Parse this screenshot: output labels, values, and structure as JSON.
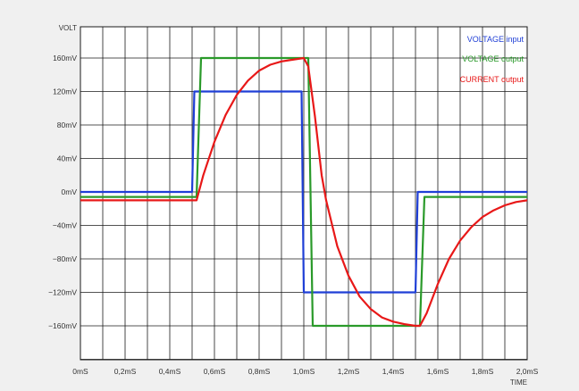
{
  "chart_data": {
    "type": "line",
    "title": "",
    "ylabel": "VOLT",
    "xlabel": "TIME",
    "xlim": [
      0,
      2.0
    ],
    "ylim": [
      -200,
      200
    ],
    "grid": true,
    "legend_position": "top-right",
    "x_ticks": [
      {
        "value": 0.0,
        "label": "0mS"
      },
      {
        "value": 0.2,
        "label": "0,2mS"
      },
      {
        "value": 0.4,
        "label": "0,4mS"
      },
      {
        "value": 0.6,
        "label": "0,6mS"
      },
      {
        "value": 0.8,
        "label": "0,8mS"
      },
      {
        "value": 1.0,
        "label": "1,0mS"
      },
      {
        "value": 1.2,
        "label": "1,2mS"
      },
      {
        "value": 1.4,
        "label": "1,4mS"
      },
      {
        "value": 1.6,
        "label": "1,6mS"
      },
      {
        "value": 1.8,
        "label": "1,8mS"
      },
      {
        "value": 2.0,
        "label": "2,0mS"
      }
    ],
    "x_grid": [
      0,
      0.1,
      0.2,
      0.3,
      0.4,
      0.5,
      0.6,
      0.7,
      0.8,
      0.9,
      1.0,
      1.1,
      1.2,
      1.3,
      1.4,
      1.5,
      1.6,
      1.7,
      1.8,
      1.9,
      2.0
    ],
    "y_ticks": [
      {
        "value": 160,
        "label": "160mV"
      },
      {
        "value": 120,
        "label": "120mV"
      },
      {
        "value": 80,
        "label": "80mV"
      },
      {
        "value": 40,
        "label": "40mV"
      },
      {
        "value": 0,
        "label": "0mV"
      },
      {
        "value": -40,
        "label": "−40mV"
      },
      {
        "value": -80,
        "label": "−80mV"
      },
      {
        "value": -120,
        "label": "−120mV"
      },
      {
        "value": -160,
        "label": "−160mV"
      }
    ],
    "series": [
      {
        "name": "VOLTAGE input",
        "color": "#1f3fd6",
        "x": [
          0,
          0.5,
          0.51,
          0.99,
          1.0,
          1.5,
          1.51,
          2.0
        ],
        "y": [
          0,
          0,
          120,
          120,
          -120,
          -120,
          0,
          0
        ]
      },
      {
        "name": "VOLTAGE output",
        "color": "#2a9a2a",
        "x": [
          0,
          0.52,
          0.54,
          1.02,
          1.04,
          1.52,
          1.54,
          2.0
        ],
        "y": [
          -6,
          -6,
          160,
          160,
          -160,
          -160,
          -6,
          -6
        ]
      },
      {
        "name": "CURRENT output",
        "color": "#e81818",
        "x": [
          0,
          0.52,
          0.55,
          0.6,
          0.65,
          0.7,
          0.75,
          0.8,
          0.85,
          0.9,
          0.95,
          1.0,
          1.02,
          1.05,
          1.08,
          1.1,
          1.15,
          1.2,
          1.25,
          1.3,
          1.35,
          1.4,
          1.45,
          1.5,
          1.52,
          1.55,
          1.6,
          1.65,
          1.7,
          1.75,
          1.8,
          1.85,
          1.9,
          1.95,
          2.0
        ],
        "y": [
          -10,
          -10,
          20,
          60,
          92,
          116,
          133,
          145,
          152,
          156,
          158,
          160,
          150,
          90,
          20,
          -10,
          -65,
          -100,
          -125,
          -140,
          -150,
          -155,
          -158,
          -160,
          -160,
          -145,
          -110,
          -80,
          -58,
          -42,
          -30,
          -22,
          -16,
          -12,
          -10
        ]
      }
    ]
  }
}
